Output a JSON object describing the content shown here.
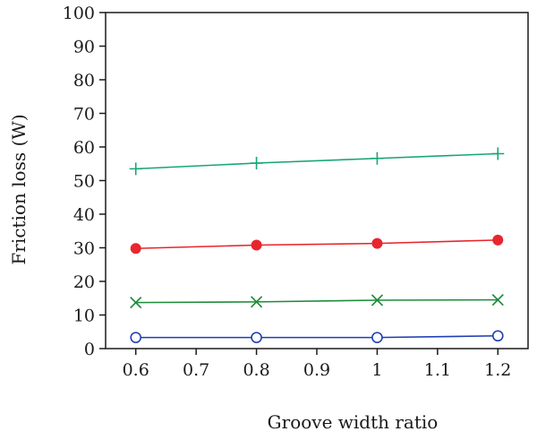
{
  "chart_data": {
    "type": "line",
    "title": "",
    "xlabel": "Groove width ratio",
    "ylabel": "Friction loss (W)",
    "xlim": [
      0.55,
      1.25
    ],
    "ylim": [
      0,
      100
    ],
    "xticks": [
      0.6,
      0.7,
      0.8,
      0.9,
      1,
      1.1,
      1.2
    ],
    "xtick_labels": [
      "0.6",
      "0.7",
      "0.8",
      "0.9",
      "1",
      "1.1",
      "1.2"
    ],
    "yticks": [
      0,
      10,
      20,
      30,
      40,
      50,
      60,
      70,
      80,
      90,
      100
    ],
    "ytick_labels": [
      "0",
      "10",
      "20",
      "30",
      "40",
      "50",
      "60",
      "70",
      "80",
      "90",
      "100"
    ],
    "grid": false,
    "x": [
      0.6,
      0.8,
      1.0,
      1.2
    ],
    "series": [
      {
        "marker": "plus",
        "color": "#17a673",
        "values": [
          53.5,
          55.2,
          56.6,
          58.0
        ]
      },
      {
        "marker": "filled-circle",
        "color": "#e8262d",
        "values": [
          29.8,
          30.8,
          31.3,
          32.3
        ]
      },
      {
        "marker": "cross",
        "color": "#1e8c3a",
        "values": [
          13.7,
          13.9,
          14.4,
          14.5
        ]
      },
      {
        "marker": "open-circle",
        "color": "#1f3eb3",
        "values": [
          3.3,
          3.3,
          3.3,
          3.8
        ]
      }
    ]
  }
}
